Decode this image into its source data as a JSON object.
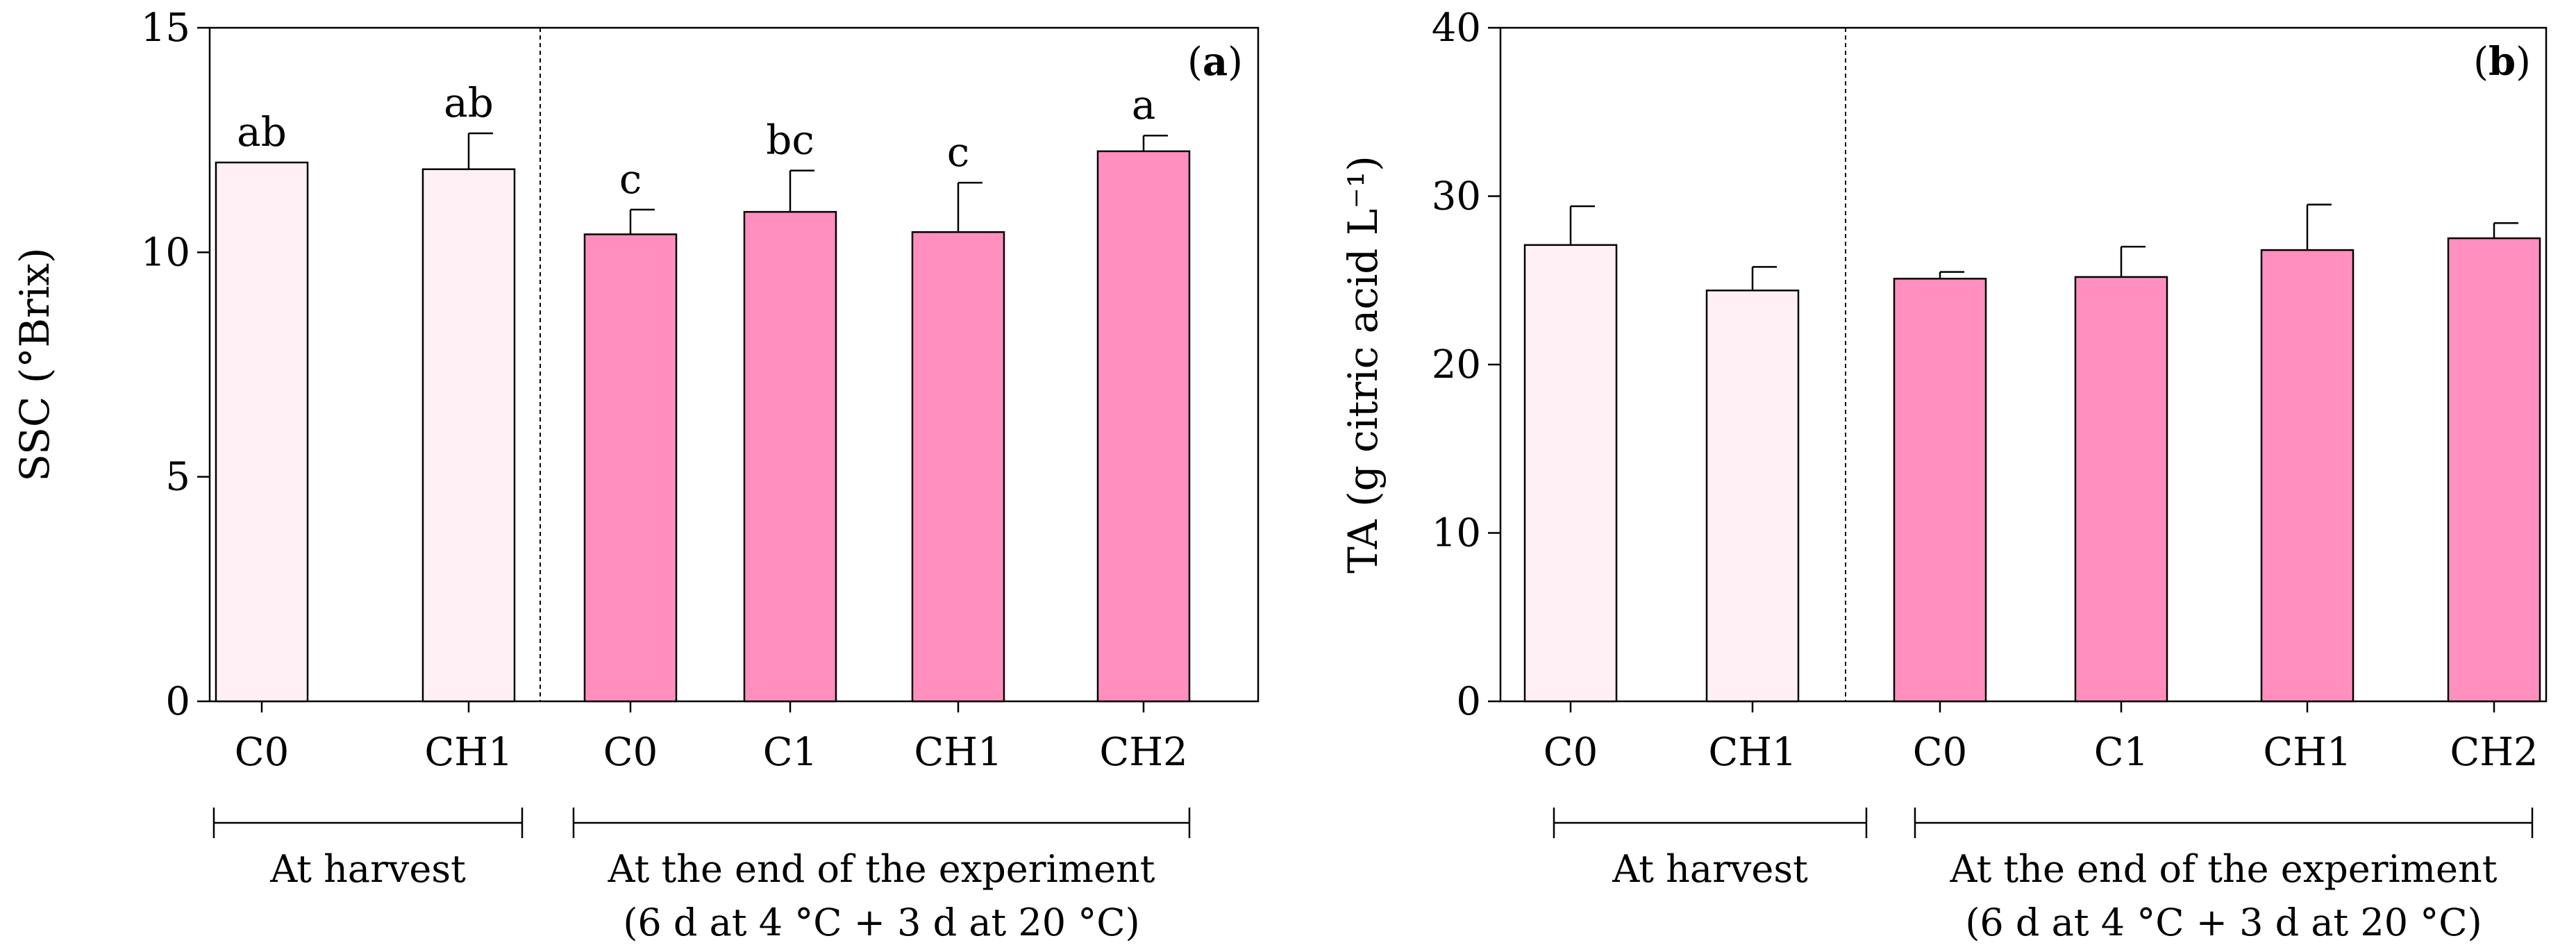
{
  "chart_data": [
    {
      "type": "bar",
      "panel_label": "(a)",
      "panel_letter": "a",
      "ylabel": "SSC (°Brix)",
      "ylim": [
        0,
        15
      ],
      "yticks": [
        "0",
        "5",
        "10",
        "15"
      ],
      "ytick_values": [
        0,
        5,
        10,
        15
      ],
      "categories": [
        "C0",
        "CH1",
        "C0",
        "C1",
        "CH1",
        "CH2"
      ],
      "values": [
        12.0,
        11.85,
        10.4,
        10.9,
        10.45,
        12.25
      ],
      "errors": [
        0,
        0.8,
        0.55,
        0.92,
        1.1,
        0.35
      ],
      "letters": [
        "ab",
        "ab",
        "c",
        "bc",
        "c",
        "a"
      ],
      "groups": [
        {
          "label": "At harvest",
          "sublabel": "",
          "start": 0,
          "end": 1,
          "color": "#fff0f5"
        },
        {
          "label": "At the end of the experiment",
          "sublabel": "(6 d at 4 °C + 3 d at 20 °C)",
          "start": 2,
          "end": 5,
          "color": "#ff8fbe"
        }
      ]
    },
    {
      "type": "bar",
      "panel_label": "(b)",
      "panel_letter": "b",
      "ylabel": "TA (g citric acid L⁻¹)",
      "ylim": [
        0,
        40
      ],
      "yticks": [
        "0",
        "10",
        "20",
        "30",
        "40"
      ],
      "ytick_values": [
        0,
        10,
        20,
        30,
        40
      ],
      "categories": [
        "C0",
        "CH1",
        "C0",
        "C1",
        "CH1",
        "CH2"
      ],
      "values": [
        27.1,
        24.4,
        25.1,
        25.2,
        26.8,
        27.5
      ],
      "errors": [
        2.3,
        1.4,
        0.4,
        1.8,
        2.7,
        0.9
      ],
      "letters": [
        "",
        "",
        "",
        "",
        "",
        ""
      ],
      "groups": [
        {
          "label": "At harvest",
          "sublabel": "",
          "start": 0,
          "end": 1,
          "color": "#fff0f5"
        },
        {
          "label": "At the end of the experiment",
          "sublabel": "(6 d at 4 °C + 3 d at 20 °C)",
          "start": 2,
          "end": 5,
          "color": "#ff8fbe"
        }
      ]
    }
  ]
}
